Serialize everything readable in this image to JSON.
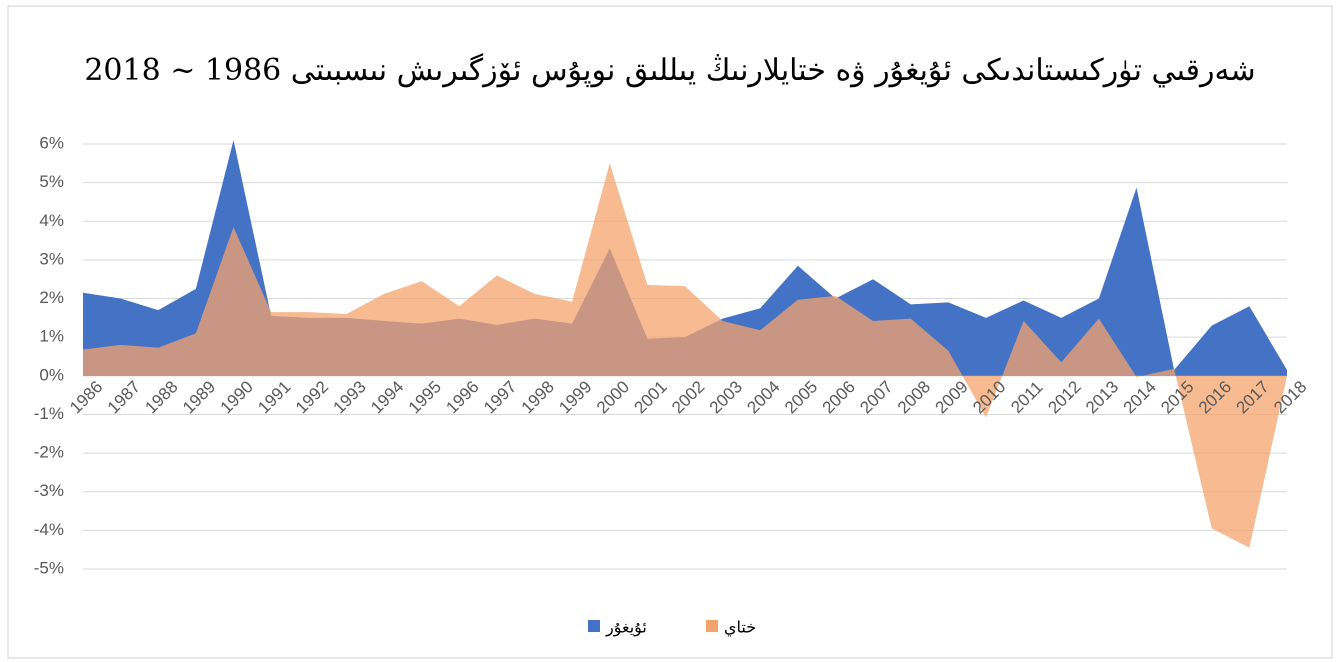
{
  "chart_data": {
    "type": "area",
    "title": "شەرقىي تۈركىستاندىكى ئۇيغۇر ۋە ختايلارنىڭ يىللىق نوپۇس ئۆزگىرىش نىسبىتى 1986 ~ 2018",
    "categories": [
      "1986",
      "1987",
      "1988",
      "1989",
      "1990",
      "1991",
      "1992",
      "1993",
      "1994",
      "1995",
      "1996",
      "1997",
      "1998",
      "1999",
      "2000",
      "2001",
      "2002",
      "2003",
      "2004",
      "2005",
      "2006",
      "2007",
      "2008",
      "2009",
      "2010",
      "2011",
      "2012",
      "2013",
      "2014",
      "2015",
      "2016",
      "2017",
      "2018"
    ],
    "series": [
      {
        "name": "ئۇيغۇر",
        "color": "#4472c4",
        "values": [
          2.15,
          2.0,
          1.7,
          2.25,
          6.1,
          1.55,
          1.5,
          1.5,
          1.42,
          1.35,
          1.48,
          1.32,
          1.48,
          1.35,
          3.3,
          0.96,
          1.0,
          1.48,
          1.75,
          2.85,
          2.0,
          2.5,
          1.85,
          1.9,
          1.5,
          1.95,
          1.5,
          2.0,
          4.87,
          0.15,
          1.3,
          1.8,
          0.15
        ]
      },
      {
        "name": "ختاي",
        "color": "#f4a36c",
        "values": [
          0.68,
          0.8,
          0.73,
          1.1,
          3.85,
          1.65,
          1.65,
          1.6,
          2.12,
          2.45,
          1.8,
          2.6,
          2.12,
          1.92,
          5.5,
          2.35,
          2.32,
          1.42,
          1.18,
          1.97,
          2.07,
          1.42,
          1.48,
          0.65,
          -1.08,
          1.42,
          0.35,
          1.48,
          -0.03,
          0.18,
          -3.95,
          -4.45,
          0
        ]
      }
    ],
    "ylim": [
      -5,
      6
    ],
    "yticks": [
      {
        "value": -5,
        "label": "-5%"
      },
      {
        "value": -4,
        "label": "-4%"
      },
      {
        "value": -3,
        "label": "-3%"
      },
      {
        "value": -2,
        "label": "-2%"
      },
      {
        "value": -1,
        "label": "-1%"
      },
      {
        "value": 0,
        "label": "0%"
      },
      {
        "value": 1,
        "label": "1%"
      },
      {
        "value": 2,
        "label": "2%"
      },
      {
        "value": 3,
        "label": "3%"
      },
      {
        "value": 4,
        "label": "4%"
      },
      {
        "value": 5,
        "label": "5%"
      },
      {
        "value": 6,
        "label": "6%"
      }
    ],
    "grid": true,
    "legend": "bottom"
  }
}
